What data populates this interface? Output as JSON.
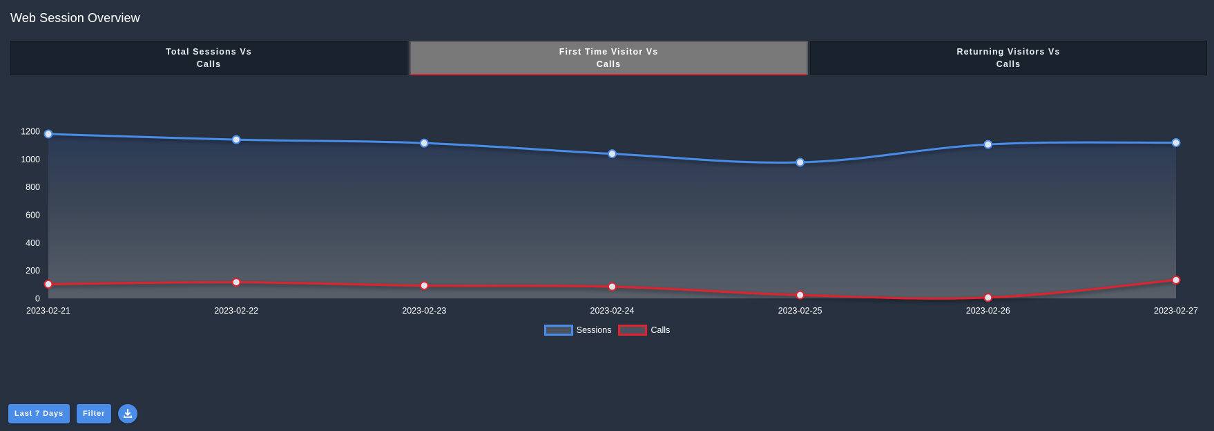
{
  "page": {
    "title": "Web Session Overview"
  },
  "tabs": [
    {
      "line1": "Total Sessions Vs",
      "line2": "Calls"
    },
    {
      "line1": "First Time Visitor Vs",
      "line2": "Calls"
    },
    {
      "line1": "Returning Visitors Vs",
      "line2": "Calls"
    }
  ],
  "active_tab": 1,
  "toolbar": {
    "range_label": "Last 7 Days",
    "filter_label": "Filter",
    "download_icon": "download-icon"
  },
  "colors": {
    "sessions": "#4a8de8",
    "calls": "#e0232f",
    "accent": "#4a8de8"
  },
  "chart_data": {
    "type": "line",
    "x": [
      "2023-02-21",
      "2023-02-22",
      "2023-02-23",
      "2023-02-24",
      "2023-02-25",
      "2023-02-26",
      "2023-02-27"
    ],
    "series": [
      {
        "name": "Sessions",
        "values": [
          1180,
          1140,
          1115,
          1038,
          977,
          1105,
          1118
        ],
        "color": "#4a8de8"
      },
      {
        "name": "Calls",
        "values": [
          102,
          116,
          92,
          84,
          24,
          6,
          132
        ],
        "color": "#e0232f"
      }
    ],
    "yticks": [
      0,
      200,
      400,
      600,
      800,
      1000,
      1200
    ],
    "ylim": [
      0,
      1200
    ],
    "legend_position": "bottom"
  }
}
